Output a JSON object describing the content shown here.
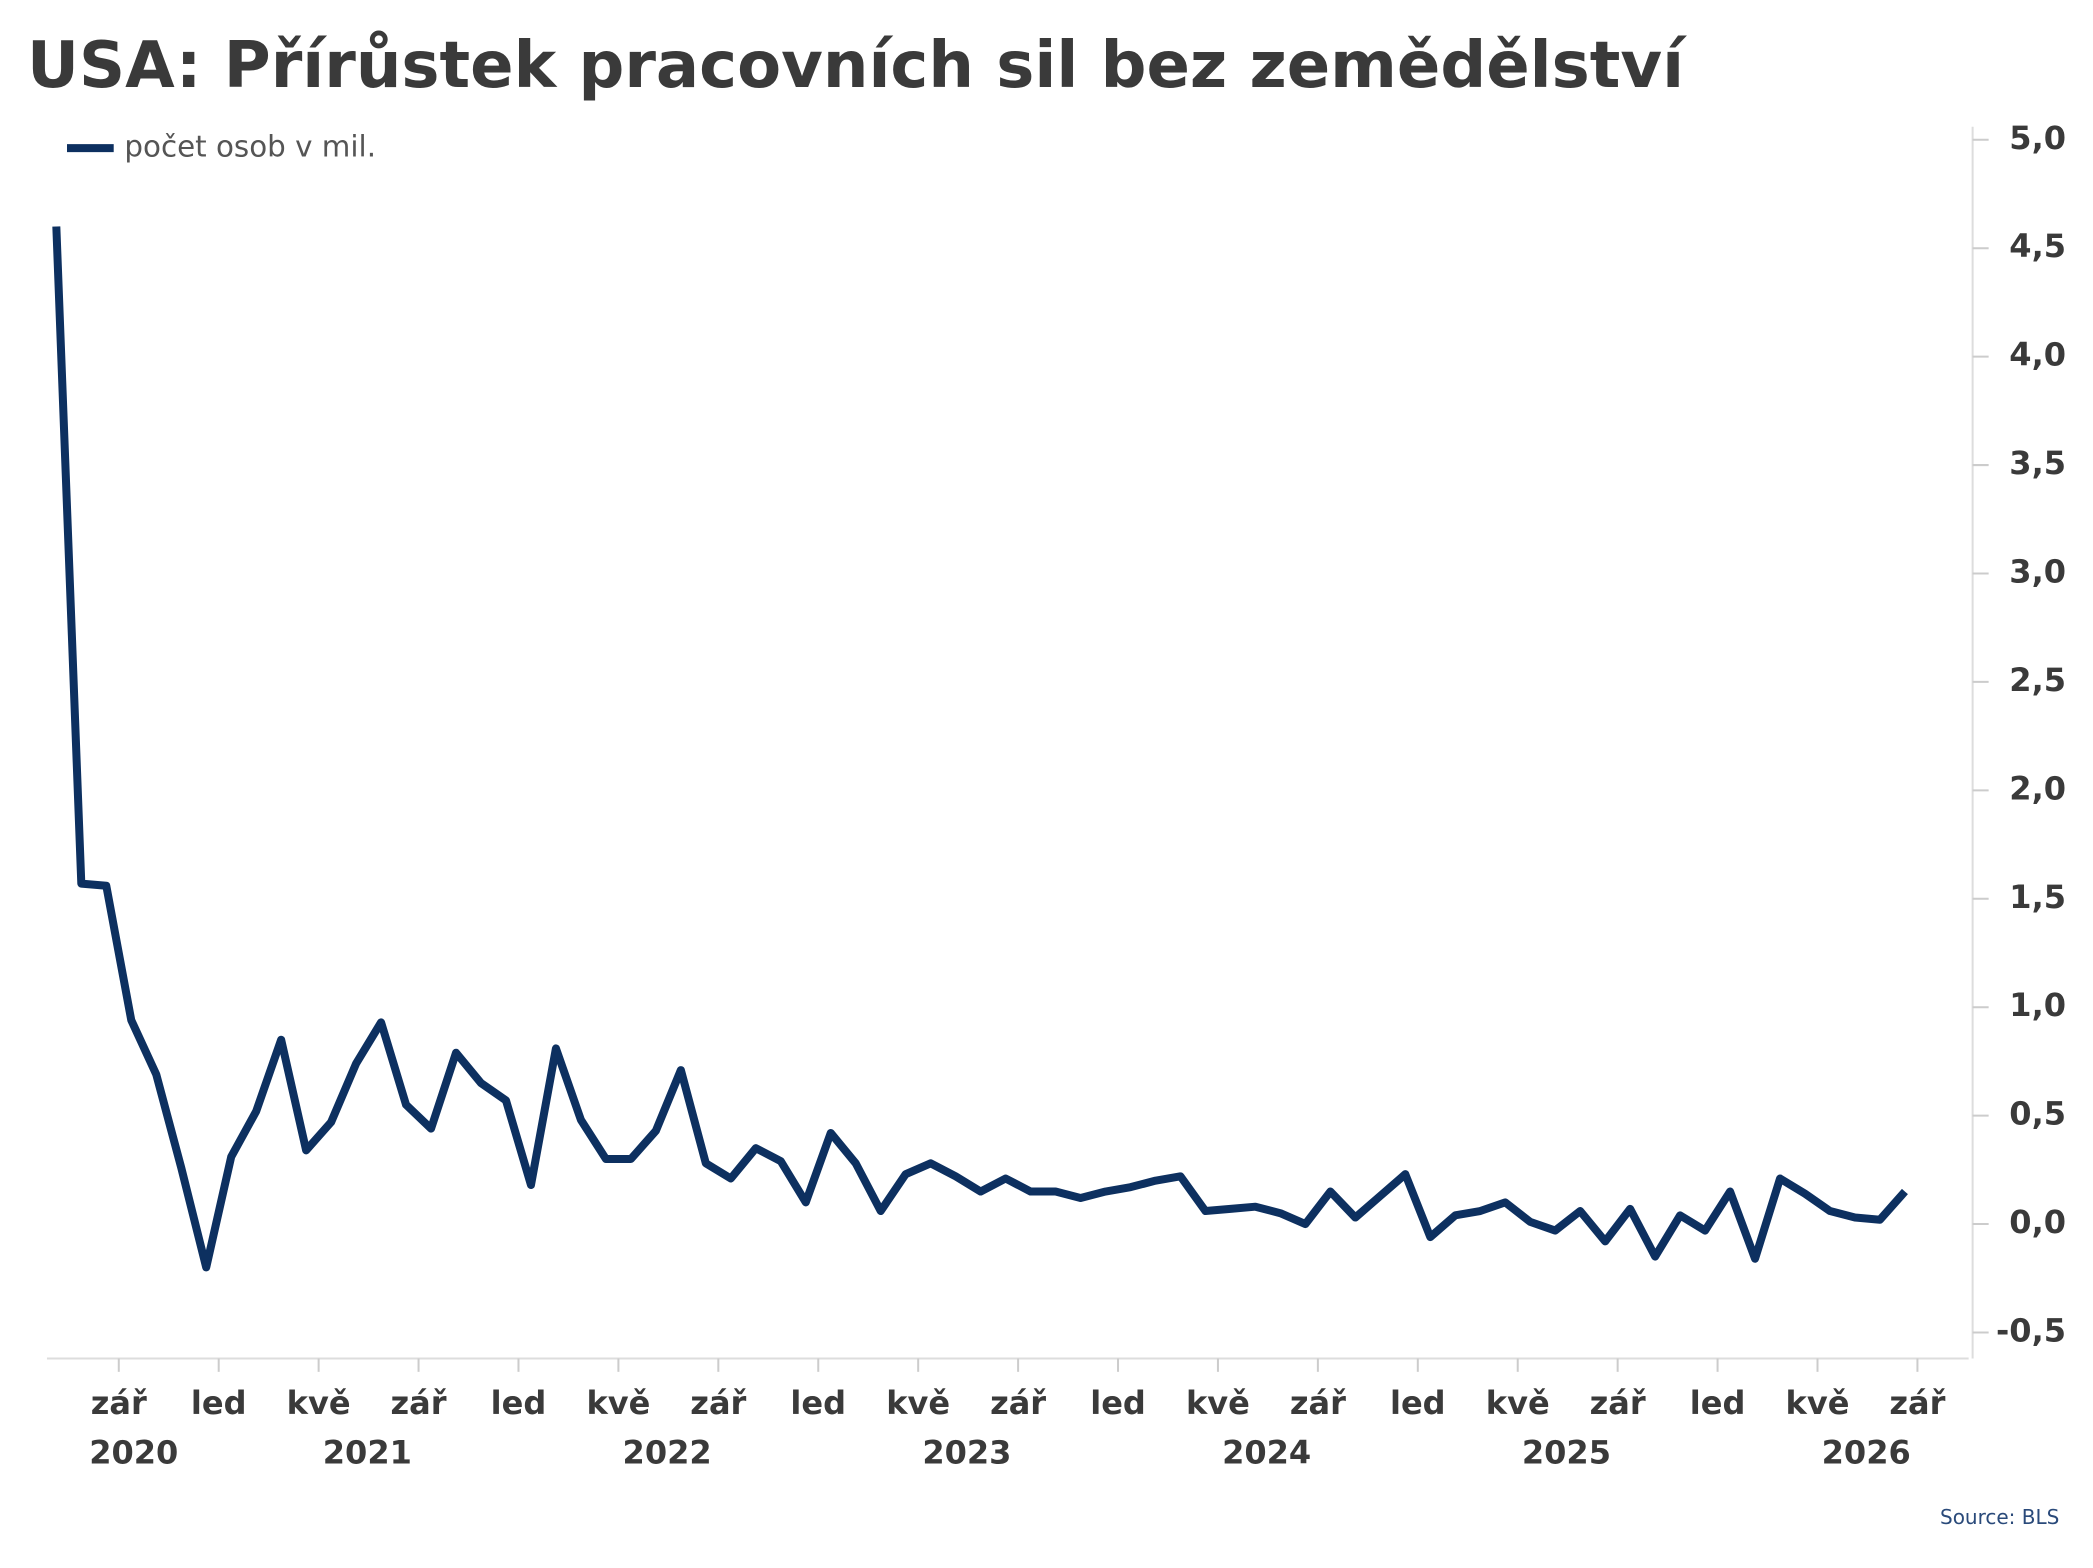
{
  "chart_data": {
    "type": "line",
    "title": "USA: Přírůstek pracovních sil bez zemědělství",
    "source": "Source: BLS",
    "categories": [
      null,
      null,
      "zář",
      null,
      null,
      null,
      "led",
      null,
      null,
      null,
      "kvě",
      null,
      null,
      null,
      "zář",
      null,
      null,
      null,
      "led",
      null,
      null,
      null,
      "kvě",
      null,
      null,
      null,
      "zář",
      null,
      null,
      null,
      "led",
      null,
      null,
      null,
      "kvě",
      null,
      null,
      null,
      "zář",
      null,
      null,
      null,
      "led",
      null,
      null,
      null,
      "kvě",
      null,
      null,
      null,
      "zář",
      null,
      null,
      null,
      "led",
      null,
      null,
      null,
      "kvě",
      null,
      null,
      null,
      "zář",
      null,
      null,
      null,
      "led",
      null,
      null,
      null,
      "kvě",
      null,
      null,
      null,
      "zář"
    ],
    "year_labels": [
      "2020",
      "2021",
      "2022",
      "2023",
      "2024",
      "2025",
      "2026"
    ],
    "series": [
      {
        "name": "počet osob v mil.",
        "color": "#0d3060",
        "values": [
          4.6,
          1.57,
          1.56,
          0.94,
          0.69,
          0.26,
          -0.2,
          0.31,
          0.52,
          0.85,
          0.34,
          0.47,
          0.74,
          0.93,
          0.55,
          0.44,
          0.79,
          0.65,
          0.57,
          0.18,
          0.81,
          0.48,
          0.3,
          0.3,
          0.43,
          0.71,
          0.28,
          0.21,
          0.35,
          0.29,
          0.1,
          0.42,
          0.28,
          0.06,
          0.23,
          0.28,
          0.22,
          0.15,
          0.21,
          0.15,
          0.15,
          0.12,
          0.15,
          0.17,
          0.2,
          0.22,
          0.06,
          0.07,
          0.08,
          0.05,
          0.0,
          0.15,
          0.03,
          0.13,
          0.23,
          -0.06,
          0.04,
          0.06,
          0.1,
          0.01,
          -0.03,
          0.06,
          -0.08,
          0.07,
          -0.15,
          0.04,
          -0.03,
          0.15,
          -0.16,
          0.21,
          0.14,
          0.06,
          0.03,
          0.02,
          0.15
        ]
      }
    ],
    "ylim": [
      -0.62,
      5.06
    ],
    "yticks": [
      {
        "value": -0.5,
        "label": "-0,5"
      },
      {
        "value": 0,
        "label": "0,0"
      },
      {
        "value": 0.5,
        "label": "0,5"
      },
      {
        "value": 1,
        "label": "1,0"
      },
      {
        "value": 1.5,
        "label": "1,5"
      },
      {
        "value": 2,
        "label": "2,0"
      },
      {
        "value": 2.5,
        "label": "2,5"
      },
      {
        "value": 3,
        "label": "3,0"
      },
      {
        "value": 3.5,
        "label": "3,5"
      },
      {
        "value": 4,
        "label": "4,0"
      },
      {
        "value": 4.5,
        "label": "4,5"
      },
      {
        "value": 5,
        "label": "5,0"
      }
    ],
    "y_axis_side": "right",
    "grid": false
  }
}
